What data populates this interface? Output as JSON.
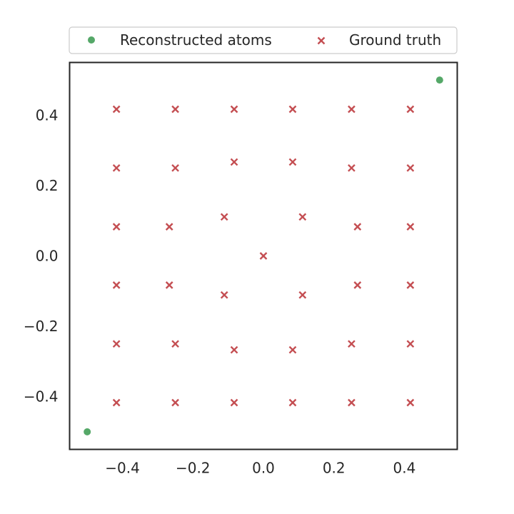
{
  "chart_data": {
    "type": "scatter",
    "title": "",
    "xlabel": "",
    "ylabel": "",
    "xlim": [
      -0.55,
      0.55
    ],
    "ylim": [
      -0.55,
      0.55
    ],
    "grid": false,
    "legend_position": "top",
    "xticks": [
      -0.4,
      -0.2,
      0.0,
      0.2,
      0.4
    ],
    "yticks": [
      -0.4,
      -0.2,
      0.0,
      0.2,
      0.4
    ],
    "xtick_labels": [
      "−0.4",
      "−0.2",
      "0.0",
      "0.2",
      "0.4"
    ],
    "ytick_labels": [
      "−0.4",
      "−0.2",
      "0.0",
      "0.2",
      "0.4"
    ],
    "series": [
      {
        "name": "Reconstructed atoms",
        "marker": "circle",
        "color": "#55a868",
        "points": [
          [
            0.5,
            0.5
          ],
          [
            -0.5,
            -0.5
          ]
        ]
      },
      {
        "name": "Ground truth",
        "marker": "x",
        "color": "#c44e52",
        "points": [
          [
            -0.417,
            0.417
          ],
          [
            -0.25,
            0.417
          ],
          [
            -0.083,
            0.417
          ],
          [
            0.083,
            0.417
          ],
          [
            0.25,
            0.417
          ],
          [
            0.417,
            0.417
          ],
          [
            -0.417,
            0.25
          ],
          [
            -0.25,
            0.25
          ],
          [
            -0.083,
            0.267
          ],
          [
            0.083,
            0.267
          ],
          [
            0.25,
            0.25
          ],
          [
            0.417,
            0.25
          ],
          [
            -0.417,
            0.083
          ],
          [
            -0.267,
            0.083
          ],
          [
            -0.111,
            0.111
          ],
          [
            0.111,
            0.111
          ],
          [
            0.267,
            0.083
          ],
          [
            0.417,
            0.083
          ],
          [
            0.0,
            0.0
          ],
          [
            -0.417,
            -0.083
          ],
          [
            -0.267,
            -0.083
          ],
          [
            -0.111,
            -0.111
          ],
          [
            0.111,
            -0.111
          ],
          [
            0.267,
            -0.083
          ],
          [
            0.417,
            -0.083
          ],
          [
            -0.417,
            -0.25
          ],
          [
            -0.25,
            -0.25
          ],
          [
            -0.083,
            -0.267
          ],
          [
            0.083,
            -0.267
          ],
          [
            0.25,
            -0.25
          ],
          [
            0.417,
            -0.25
          ],
          [
            -0.417,
            -0.417
          ],
          [
            -0.25,
            -0.417
          ],
          [
            -0.083,
            -0.417
          ],
          [
            0.083,
            -0.417
          ],
          [
            0.25,
            -0.417
          ],
          [
            0.417,
            -0.417
          ]
        ]
      }
    ]
  }
}
